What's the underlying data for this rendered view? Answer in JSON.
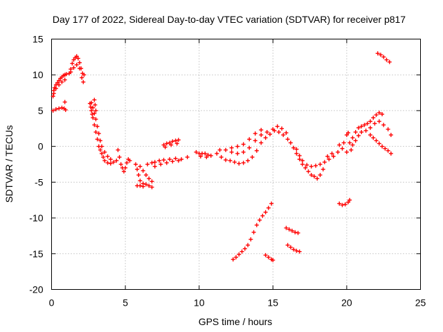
{
  "chart_data": {
    "type": "scatter",
    "title": "Day 177 of 2022, Sidereal Day-to-day VTEC variation (SDTVAR) for receiver p817",
    "xlabel": "GPS time / hours",
    "ylabel": "SDTVAR / TECUs",
    "xlim": [
      0,
      25
    ],
    "ylim": [
      -20,
      15
    ],
    "xticks": [
      0,
      5,
      10,
      15,
      20,
      25
    ],
    "yticks": [
      -20,
      -15,
      -10,
      -5,
      0,
      5,
      10,
      15
    ],
    "grid": true,
    "marker": "+",
    "marker_color": "#ff0000",
    "series": [
      {
        "points": [
          [
            0.1,
            7.0
          ],
          [
            0.15,
            7.8
          ],
          [
            0.2,
            8.2
          ],
          [
            0.3,
            8.6
          ],
          [
            0.4,
            8.9
          ],
          [
            0.5,
            9.2
          ],
          [
            0.6,
            9.5
          ],
          [
            0.7,
            9.7
          ],
          [
            0.8,
            9.9
          ],
          [
            0.9,
            10.0
          ],
          [
            1.0,
            10.1
          ],
          [
            0.15,
            7.4
          ],
          [
            0.3,
            8.1
          ],
          [
            0.5,
            8.6
          ],
          [
            0.7,
            9.0
          ],
          [
            0.9,
            9.3
          ],
          [
            1.2,
            10.2
          ],
          [
            1.3,
            10.8
          ],
          [
            1.4,
            11.6
          ],
          [
            1.5,
            12.1
          ],
          [
            1.6,
            12.4
          ],
          [
            1.7,
            12.6
          ],
          [
            1.8,
            12.3
          ],
          [
            1.9,
            11.7
          ],
          [
            2.0,
            10.9
          ],
          [
            2.1,
            10.2
          ],
          [
            2.2,
            10.0
          ],
          [
            1.3,
            10.4
          ],
          [
            1.5,
            11.0
          ],
          [
            1.7,
            11.4
          ],
          [
            1.9,
            10.9
          ],
          [
            2.05,
            9.6
          ],
          [
            2.15,
            9.0
          ],
          [
            0.1,
            5.0
          ],
          [
            0.3,
            5.2
          ],
          [
            0.5,
            5.3
          ],
          [
            0.7,
            5.4
          ],
          [
            0.85,
            5.3
          ],
          [
            0.95,
            5.1
          ],
          [
            0.9,
            6.2
          ],
          [
            2.6,
            6.0
          ],
          [
            2.65,
            5.5
          ],
          [
            2.7,
            5.0
          ],
          [
            2.75,
            4.5
          ],
          [
            2.8,
            4.0
          ],
          [
            2.9,
            3.0
          ],
          [
            3.0,
            2.0
          ],
          [
            3.1,
            1.0
          ],
          [
            3.2,
            0.0
          ],
          [
            3.3,
            -0.5
          ],
          [
            3.4,
            -1.0
          ],
          [
            3.5,
            -1.5
          ],
          [
            3.6,
            -2.0
          ],
          [
            3.8,
            -2.3
          ],
          [
            4.0,
            -2.4
          ],
          [
            4.2,
            -2.2
          ],
          [
            4.4,
            -2.0
          ],
          [
            2.7,
            6.1
          ],
          [
            2.8,
            5.4
          ],
          [
            2.9,
            4.6
          ],
          [
            3.0,
            3.8
          ],
          [
            3.1,
            2.8
          ],
          [
            3.2,
            1.8
          ],
          [
            3.3,
            0.8
          ],
          [
            3.4,
            0.0
          ],
          [
            3.6,
            -0.8
          ],
          [
            3.8,
            -1.4
          ],
          [
            4.0,
            -1.8
          ],
          [
            2.9,
            6.5
          ],
          [
            2.95,
            5.8
          ],
          [
            3.0,
            5.0
          ],
          [
            4.5,
            -0.5
          ],
          [
            4.6,
            -1.5
          ],
          [
            4.7,
            -2.5
          ],
          [
            4.8,
            -3.0
          ],
          [
            4.9,
            -3.5
          ],
          [
            5.0,
            -3.0
          ],
          [
            5.1,
            -2.3
          ],
          [
            5.2,
            -1.8
          ],
          [
            5.3,
            -2.0
          ],
          [
            5.7,
            -2.5
          ],
          [
            5.8,
            -3.2
          ],
          [
            5.9,
            -4.0
          ],
          [
            6.0,
            -4.8
          ],
          [
            6.2,
            -5.2
          ],
          [
            6.4,
            -5.3
          ],
          [
            6.6,
            -5.5
          ],
          [
            6.8,
            -5.7
          ],
          [
            6.0,
            -2.8
          ],
          [
            6.2,
            -3.4
          ],
          [
            6.4,
            -4.0
          ],
          [
            6.6,
            -4.5
          ],
          [
            6.8,
            -4.9
          ],
          [
            5.8,
            -5.5
          ],
          [
            6.0,
            -5.5
          ],
          [
            6.2,
            -5.6
          ],
          [
            6.5,
            -2.5
          ],
          [
            6.8,
            -2.3
          ],
          [
            7.0,
            -2.2
          ],
          [
            7.3,
            -2.0
          ],
          [
            7.6,
            -1.9
          ],
          [
            8.0,
            -1.8
          ],
          [
            8.4,
            -1.7
          ],
          [
            8.8,
            -1.8
          ],
          [
            9.2,
            -1.5
          ],
          [
            7.0,
            -2.8
          ],
          [
            7.4,
            -2.5
          ],
          [
            7.8,
            -2.3
          ],
          [
            8.2,
            -2.1
          ],
          [
            8.6,
            -2.0
          ],
          [
            7.6,
            0.2
          ],
          [
            7.8,
            0.4
          ],
          [
            8.0,
            0.5
          ],
          [
            8.2,
            0.7
          ],
          [
            8.4,
            0.8
          ],
          [
            8.6,
            0.9
          ],
          [
            7.7,
            -0.1
          ],
          [
            8.1,
            0.2
          ],
          [
            8.5,
            0.4
          ],
          [
            9.8,
            -0.8
          ],
          [
            10.0,
            -1.0
          ],
          [
            10.2,
            -1.0
          ],
          [
            10.4,
            -1.0
          ],
          [
            10.6,
            -1.2
          ],
          [
            10.8,
            -1.3
          ],
          [
            10.1,
            -1.4
          ],
          [
            10.5,
            -1.5
          ],
          [
            11.2,
            -1.0
          ],
          [
            11.5,
            -1.5
          ],
          [
            11.8,
            -1.9
          ],
          [
            12.1,
            -2.0
          ],
          [
            12.4,
            -2.2
          ],
          [
            12.7,
            -2.4
          ],
          [
            13.0,
            -2.3
          ],
          [
            13.3,
            -2.0
          ],
          [
            13.6,
            -1.5
          ],
          [
            13.9,
            -0.6
          ],
          [
            14.2,
            0.5
          ],
          [
            14.5,
            1.2
          ],
          [
            14.8,
            1.7
          ],
          [
            15.1,
            2.2
          ],
          [
            15.4,
            2.0
          ],
          [
            15.7,
            1.6
          ],
          [
            16.0,
            1.0
          ],
          [
            11.4,
            -0.5
          ],
          [
            11.8,
            -0.5
          ],
          [
            12.2,
            -0.8
          ],
          [
            12.6,
            -1.0
          ],
          [
            13.0,
            -0.8
          ],
          [
            13.4,
            -0.2
          ],
          [
            13.8,
            0.8
          ],
          [
            14.2,
            1.6
          ],
          [
            14.6,
            2.0
          ],
          [
            15.0,
            2.4
          ],
          [
            15.3,
            2.8
          ],
          [
            15.6,
            2.5
          ],
          [
            15.9,
            1.9
          ],
          [
            12.2,
            -0.2
          ],
          [
            12.6,
            0.0
          ],
          [
            13.0,
            0.3
          ],
          [
            13.4,
            1.0
          ],
          [
            13.8,
            1.8
          ],
          [
            14.2,
            2.3
          ],
          [
            16.2,
            0.5
          ],
          [
            16.4,
            -0.2
          ],
          [
            16.6,
            -1.0
          ],
          [
            16.8,
            -1.8
          ],
          [
            17.0,
            -2.5
          ],
          [
            17.2,
            -3.0
          ],
          [
            17.4,
            -3.5
          ],
          [
            17.6,
            -4.0
          ],
          [
            17.8,
            -4.2
          ],
          [
            18.0,
            -4.5
          ],
          [
            18.2,
            -4.0
          ],
          [
            18.4,
            -3.2
          ],
          [
            16.6,
            -0.4
          ],
          [
            16.8,
            -1.3
          ],
          [
            17.0,
            -2.0
          ],
          [
            17.3,
            -2.6
          ],
          [
            17.6,
            -2.8
          ],
          [
            17.9,
            -2.7
          ],
          [
            18.2,
            -2.5
          ],
          [
            18.5,
            -2.2
          ],
          [
            18.8,
            -1.8
          ],
          [
            19.1,
            -1.4
          ],
          [
            19.4,
            -0.8
          ],
          [
            19.7,
            -0.3
          ],
          [
            20.0,
            -0.8
          ],
          [
            20.3,
            -0.5
          ],
          [
            18.7,
            -1.4
          ],
          [
            19.0,
            -1.0
          ],
          [
            19.5,
            0.2
          ],
          [
            19.8,
            0.5
          ],
          [
            20.0,
            1.6
          ],
          [
            20.1,
            1.9
          ],
          [
            20.2,
            0.5
          ],
          [
            20.4,
            1.2
          ],
          [
            20.6,
            2.0
          ],
          [
            20.8,
            2.6
          ],
          [
            21.0,
            2.8
          ],
          [
            21.2,
            3.0
          ],
          [
            21.4,
            3.2
          ],
          [
            21.6,
            3.5
          ],
          [
            21.8,
            4.0
          ],
          [
            22.0,
            4.4
          ],
          [
            22.2,
            4.7
          ],
          [
            22.4,
            4.5
          ],
          [
            20.4,
            0.2
          ],
          [
            20.6,
            0.8
          ],
          [
            20.8,
            1.5
          ],
          [
            21.0,
            2.0
          ],
          [
            21.3,
            2.2
          ],
          [
            21.6,
            2.6
          ],
          [
            21.9,
            3.2
          ],
          [
            22.2,
            3.5
          ],
          [
            22.5,
            3.0
          ],
          [
            22.8,
            2.4
          ],
          [
            23.0,
            1.6
          ],
          [
            21.6,
            1.6
          ],
          [
            21.8,
            1.2
          ],
          [
            22.0,
            0.8
          ],
          [
            22.2,
            0.4
          ],
          [
            22.4,
            0.0
          ],
          [
            22.6,
            -0.3
          ],
          [
            22.8,
            -0.6
          ],
          [
            23.0,
            -1.0
          ],
          [
            22.1,
            13.0
          ],
          [
            22.3,
            12.8
          ],
          [
            22.5,
            12.5
          ],
          [
            22.7,
            12.1
          ],
          [
            22.9,
            11.8
          ],
          [
            12.3,
            -15.8
          ],
          [
            12.5,
            -15.5
          ],
          [
            12.7,
            -15.1
          ],
          [
            12.9,
            -14.7
          ],
          [
            13.1,
            -14.3
          ],
          [
            13.3,
            -13.8
          ],
          [
            13.5,
            -13.0
          ],
          [
            13.7,
            -12.0
          ],
          [
            13.9,
            -11.0
          ],
          [
            14.1,
            -10.3
          ],
          [
            14.3,
            -9.7
          ],
          [
            14.5,
            -9.2
          ],
          [
            14.7,
            -8.6
          ],
          [
            14.9,
            -8.0
          ],
          [
            14.5,
            -15.2
          ],
          [
            14.7,
            -15.5
          ],
          [
            14.9,
            -15.8
          ],
          [
            15.0,
            -15.9
          ],
          [
            15.9,
            -11.4
          ],
          [
            16.1,
            -11.6
          ],
          [
            16.3,
            -11.8
          ],
          [
            16.5,
            -12.0
          ],
          [
            16.7,
            -12.1
          ],
          [
            16.0,
            -13.8
          ],
          [
            16.2,
            -14.1
          ],
          [
            16.4,
            -14.4
          ],
          [
            16.6,
            -14.6
          ],
          [
            16.8,
            -14.7
          ],
          [
            19.5,
            -8.0
          ],
          [
            19.7,
            -8.2
          ],
          [
            19.9,
            -8.1
          ],
          [
            20.1,
            -7.8
          ],
          [
            20.2,
            -7.5
          ]
        ]
      }
    ]
  }
}
